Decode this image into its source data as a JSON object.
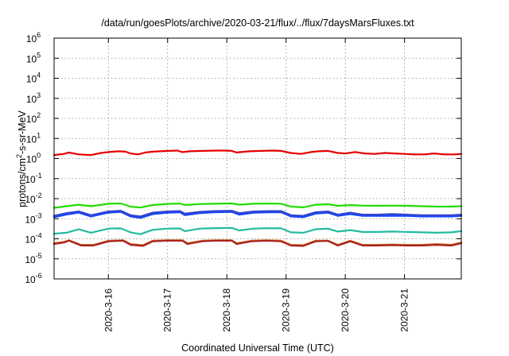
{
  "chart_data": {
    "type": "line",
    "title": "/data/run/goesPlots/archive/2020-03-21/flux/../flux/7daysMarsFluxes.txt",
    "xlabel": "Coordinated Universal Time (UTC)",
    "ylabel": "protons/cm2-s-sr-MeV",
    "ylabel_parts": {
      "pre": "protons/cm",
      "sup": "2",
      "post": "-s-sr-MeV"
    },
    "yscale": "log",
    "ylim": [
      1e-06,
      1000000.0
    ],
    "y_ticks": [
      {
        "value": 1e-06,
        "base": "10",
        "exp": "-6"
      },
      {
        "value": 1e-05,
        "base": "10",
        "exp": "-5"
      },
      {
        "value": 0.0001,
        "base": "10",
        "exp": "-4"
      },
      {
        "value": 0.001,
        "base": "10",
        "exp": "-3"
      },
      {
        "value": 0.01,
        "base": "10",
        "exp": "-2"
      },
      {
        "value": 0.1,
        "base": "10",
        "exp": "-1"
      },
      {
        "value": 1,
        "base": "10",
        "exp": "0"
      },
      {
        "value": 10.0,
        "base": "10",
        "exp": "1"
      },
      {
        "value": 100.0,
        "base": "10",
        "exp": "2"
      },
      {
        "value": 1000.0,
        "base": "10",
        "exp": "3"
      },
      {
        "value": 10000.0,
        "base": "10",
        "exp": "4"
      },
      {
        "value": 100000.0,
        "base": "10",
        "exp": "5"
      },
      {
        "value": 1000000.0,
        "base": "10",
        "exp": "6"
      }
    ],
    "xlim": [
      "2020-03-15 02:00",
      "2020-03-21 23:00"
    ],
    "x_ticks": [
      "2020-3-16",
      "2020-3-17",
      "2020-3-18",
      "2020-3-19",
      "2020-3-20",
      "2020-3-21"
    ],
    "grid": true,
    "series": [
      {
        "color": "#e60000",
        "x": [
          "2020-03-15 02:00",
          "2020-03-15 06:00",
          "2020-03-15 08:00",
          "2020-03-15 12:00",
          "2020-03-15 17:00",
          "2020-03-15 21:00",
          "2020-03-16 00:00",
          "2020-03-16 04:00",
          "2020-03-16 07:00",
          "2020-03-16 09:00",
          "2020-03-16 12:00",
          "2020-03-16 15:00",
          "2020-03-16 18:00",
          "2020-03-17 00:00",
          "2020-03-17 04:00",
          "2020-03-17 06:00",
          "2020-03-17 09:00",
          "2020-03-17 14:00",
          "2020-03-17 19:00",
          "2020-03-17 23:00",
          "2020-03-18 02:00",
          "2020-03-18 04:00",
          "2020-03-18 09:00",
          "2020-03-18 14:00",
          "2020-03-18 18:00",
          "2020-03-18 22:00",
          "2020-03-19 02:00",
          "2020-03-19 06:00",
          "2020-03-19 10:00",
          "2020-03-19 13:00",
          "2020-03-19 17:00",
          "2020-03-19 21:00",
          "2020-03-20 00:00",
          "2020-03-20 04:00",
          "2020-03-20 08:00",
          "2020-03-20 12:00",
          "2020-03-20 16:00",
          "2020-03-20 20:00",
          "2020-03-21 00:00",
          "2020-03-21 04:00",
          "2020-03-21 08:00",
          "2020-03-21 12:00",
          "2020-03-21 16:00",
          "2020-03-21 20:00",
          "2020-03-21 23:00"
        ],
        "values": [
          1.5,
          1.7,
          2.0,
          1.6,
          1.5,
          1.9,
          2.1,
          2.3,
          2.2,
          1.8,
          1.6,
          2.0,
          2.2,
          2.4,
          2.5,
          2.1,
          2.3,
          2.4,
          2.5,
          2.5,
          2.4,
          2.0,
          2.3,
          2.4,
          2.5,
          2.4,
          1.9,
          1.7,
          2.1,
          2.3,
          2.4,
          1.9,
          1.8,
          2.1,
          1.8,
          1.7,
          1.9,
          1.8,
          1.7,
          1.6,
          1.6,
          1.8,
          1.6,
          1.6,
          1.7
        ]
      },
      {
        "color": "#22dd00",
        "x": [
          "2020-03-15 02:00",
          "2020-03-15 07:00",
          "2020-03-15 12:00",
          "2020-03-15 17:00",
          "2020-03-16 00:00",
          "2020-03-16 05:00",
          "2020-03-16 09:00",
          "2020-03-16 13:00",
          "2020-03-16 18:00",
          "2020-03-17 00:00",
          "2020-03-17 05:00",
          "2020-03-17 07:00",
          "2020-03-17 13:00",
          "2020-03-17 19:00",
          "2020-03-18 02:00",
          "2020-03-18 05:00",
          "2020-03-18 11:00",
          "2020-03-18 17:00",
          "2020-03-18 22:00",
          "2020-03-19 02:00",
          "2020-03-19 07:00",
          "2020-03-19 12:00",
          "2020-03-19 17:00",
          "2020-03-19 21:00",
          "2020-03-20 02:00",
          "2020-03-20 07:00",
          "2020-03-20 13:00",
          "2020-03-20 19:00",
          "2020-03-21 01:00",
          "2020-03-21 07:00",
          "2020-03-21 13:00",
          "2020-03-21 19:00",
          "2020-03-21 23:00"
        ],
        "values": [
          0.0035,
          0.0042,
          0.005,
          0.0042,
          0.0056,
          0.0058,
          0.004,
          0.0036,
          0.0048,
          0.0055,
          0.0057,
          0.0048,
          0.0054,
          0.0056,
          0.0058,
          0.005,
          0.0056,
          0.0057,
          0.0056,
          0.004,
          0.0037,
          0.005,
          0.0053,
          0.0044,
          0.0048,
          0.0045,
          0.0044,
          0.0045,
          0.0044,
          0.0042,
          0.004,
          0.004,
          0.0042
        ]
      },
      {
        "color": "#1144ff",
        "x": [
          "2020-03-15 02:00",
          "2020-03-15 07:00",
          "2020-03-15 12:00",
          "2020-03-15 17:00",
          "2020-03-16 00:00",
          "2020-03-16 05:00",
          "2020-03-16 09:00",
          "2020-03-16 13:00",
          "2020-03-16 18:00",
          "2020-03-17 00:00",
          "2020-03-17 05:00",
          "2020-03-17 07:00",
          "2020-03-17 13:00",
          "2020-03-17 19:00",
          "2020-03-18 02:00",
          "2020-03-18 05:00",
          "2020-03-18 11:00",
          "2020-03-18 17:00",
          "2020-03-18 22:00",
          "2020-03-19 02:00",
          "2020-03-19 07:00",
          "2020-03-19 12:00",
          "2020-03-19 17:00",
          "2020-03-19 21:00",
          "2020-03-20 02:00",
          "2020-03-20 07:00",
          "2020-03-20 13:00",
          "2020-03-20 19:00",
          "2020-03-21 01:00",
          "2020-03-21 07:00",
          "2020-03-21 13:00",
          "2020-03-21 19:00",
          "2020-03-21 23:00"
        ],
        "values": [
          0.0012,
          0.0016,
          0.002,
          0.0013,
          0.002,
          0.0022,
          0.0013,
          0.0011,
          0.0017,
          0.002,
          0.0021,
          0.0015,
          0.0019,
          0.0021,
          0.0022,
          0.0016,
          0.002,
          0.0021,
          0.0021,
          0.0013,
          0.0012,
          0.0018,
          0.002,
          0.0014,
          0.0017,
          0.0014,
          0.0014,
          0.0014,
          0.0014,
          0.0013,
          0.0013,
          0.0013,
          0.0014
        ]
      },
      {
        "color": "#3344cc",
        "x": [
          "2020-03-15 02:00",
          "2020-03-15 07:00",
          "2020-03-15 12:00",
          "2020-03-15 17:00",
          "2020-03-16 00:00",
          "2020-03-16 05:00",
          "2020-03-16 09:00",
          "2020-03-16 13:00",
          "2020-03-16 18:00",
          "2020-03-17 00:00",
          "2020-03-17 05:00",
          "2020-03-17 07:00",
          "2020-03-17 13:00",
          "2020-03-17 19:00",
          "2020-03-18 02:00",
          "2020-03-18 05:00",
          "2020-03-18 11:00",
          "2020-03-18 17:00",
          "2020-03-18 22:00",
          "2020-03-19 02:00",
          "2020-03-19 07:00",
          "2020-03-19 12:00",
          "2020-03-19 17:00",
          "2020-03-19 21:00",
          "2020-03-20 02:00",
          "2020-03-20 07:00",
          "2020-03-20 13:00",
          "2020-03-20 19:00",
          "2020-03-21 01:00",
          "2020-03-21 07:00",
          "2020-03-21 13:00",
          "2020-03-21 19:00",
          "2020-03-21 23:00"
        ],
        "values": [
          0.0014,
          0.0019,
          0.0023,
          0.0015,
          0.0023,
          0.0025,
          0.0015,
          0.0013,
          0.002,
          0.0023,
          0.0024,
          0.0018,
          0.0022,
          0.0024,
          0.0025,
          0.0019,
          0.0023,
          0.0024,
          0.0024,
          0.0015,
          0.0014,
          0.0021,
          0.0023,
          0.0016,
          0.002,
          0.0016,
          0.0016,
          0.0017,
          0.0016,
          0.0015,
          0.0015,
          0.0015,
          0.0016
        ]
      },
      {
        "color": "#22bba0",
        "x": [
          "2020-03-15 02:00",
          "2020-03-15 07:00",
          "2020-03-15 12:00",
          "2020-03-15 17:00",
          "2020-03-16 00:00",
          "2020-03-16 05:00",
          "2020-03-16 09:00",
          "2020-03-16 13:00",
          "2020-03-16 18:00",
          "2020-03-17 00:00",
          "2020-03-17 05:00",
          "2020-03-17 07:00",
          "2020-03-17 13:00",
          "2020-03-17 19:00",
          "2020-03-18 02:00",
          "2020-03-18 05:00",
          "2020-03-18 11:00",
          "2020-03-18 17:00",
          "2020-03-18 22:00",
          "2020-03-19 02:00",
          "2020-03-19 07:00",
          "2020-03-19 12:00",
          "2020-03-19 17:00",
          "2020-03-19 21:00",
          "2020-03-20 02:00",
          "2020-03-20 07:00",
          "2020-03-20 13:00",
          "2020-03-20 19:00",
          "2020-03-21 01:00",
          "2020-03-21 07:00",
          "2020-03-21 13:00",
          "2020-03-21 19:00",
          "2020-03-21 23:00"
        ],
        "values": [
          0.00018,
          0.0002,
          0.0003,
          0.0002,
          0.00032,
          0.00033,
          0.00021,
          0.00017,
          0.00028,
          0.00032,
          0.00033,
          0.00024,
          0.00032,
          0.00034,
          0.00035,
          0.00026,
          0.00032,
          0.00034,
          0.00033,
          0.00021,
          0.0002,
          0.0003,
          0.00032,
          0.00023,
          0.00027,
          0.00022,
          0.00022,
          0.00023,
          0.00022,
          0.00021,
          0.0002,
          0.00021,
          0.00024
        ]
      },
      {
        "color": "#cc7722",
        "x": [
          "2020-03-15 02:00",
          "2020-03-15 06:00",
          "2020-03-15 08:00",
          "2020-03-15 13:00",
          "2020-03-15 18:00",
          "2020-03-16 00:00",
          "2020-03-16 06:00",
          "2020-03-16 09:00",
          "2020-03-16 14:00",
          "2020-03-16 18:00",
          "2020-03-17 00:00",
          "2020-03-17 06:00",
          "2020-03-17 08:00",
          "2020-03-17 14:00",
          "2020-03-17 19:00",
          "2020-03-18 02:00",
          "2020-03-18 04:00",
          "2020-03-18 10:00",
          "2020-03-18 16:00",
          "2020-03-18 22:00",
          "2020-03-19 02:00",
          "2020-03-19 07:00",
          "2020-03-19 12:00",
          "2020-03-19 17:00",
          "2020-03-19 21:00",
          "2020-03-20 02:00",
          "2020-03-20 07:00",
          "2020-03-20 13:00",
          "2020-03-20 19:00",
          "2020-03-21 01:00",
          "2020-03-21 07:00",
          "2020-03-21 13:00",
          "2020-03-21 19:00",
          "2020-03-21 23:00"
        ],
        "values": [
          6e-05,
          7e-05,
          8.5e-05,
          5e-05,
          5e-05,
          8e-05,
          8.5e-05,
          5.5e-05,
          4.8e-05,
          8e-05,
          8.5e-05,
          8.5e-05,
          6e-05,
          8e-05,
          8.5e-05,
          8.5e-05,
          6e-05,
          8e-05,
          8.5e-05,
          8e-05,
          5e-05,
          4.8e-05,
          8e-05,
          8.2e-05,
          5e-05,
          8e-05,
          5e-05,
          5e-05,
          5.2e-05,
          5e-05,
          5e-05,
          5.5e-05,
          5e-05,
          6.5e-05
        ]
      },
      {
        "color": "#aa2222",
        "x": [
          "2020-03-15 02:00",
          "2020-03-15 06:00",
          "2020-03-15 08:00",
          "2020-03-15 13:00",
          "2020-03-15 18:00",
          "2020-03-16 00:00",
          "2020-03-16 06:00",
          "2020-03-16 09:00",
          "2020-03-16 14:00",
          "2020-03-16 18:00",
          "2020-03-17 00:00",
          "2020-03-17 06:00",
          "2020-03-17 08:00",
          "2020-03-17 14:00",
          "2020-03-17 19:00",
          "2020-03-18 02:00",
          "2020-03-18 04:00",
          "2020-03-18 10:00",
          "2020-03-18 16:00",
          "2020-03-18 22:00",
          "2020-03-19 02:00",
          "2020-03-19 07:00",
          "2020-03-19 12:00",
          "2020-03-19 17:00",
          "2020-03-19 21:00",
          "2020-03-20 02:00",
          "2020-03-20 07:00",
          "2020-03-20 13:00",
          "2020-03-20 19:00",
          "2020-03-21 01:00",
          "2020-03-21 07:00",
          "2020-03-21 13:00",
          "2020-03-21 19:00",
          "2020-03-21 23:00"
        ],
        "values": [
          5.5e-05,
          6.5e-05,
          8e-05,
          4.6e-05,
          4.6e-05,
          7.5e-05,
          8e-05,
          5e-05,
          4.4e-05,
          7.5e-05,
          8e-05,
          8e-05,
          5.5e-05,
          7.5e-05,
          8e-05,
          8e-05,
          5.5e-05,
          7.5e-05,
          8e-05,
          7.5e-05,
          4.6e-05,
          4.4e-05,
          7.5e-05,
          7.8e-05,
          4.6e-05,
          7.5e-05,
          4.6e-05,
          4.6e-05,
          4.8e-05,
          4.6e-05,
          4.6e-05,
          5e-05,
          4.6e-05,
          6e-05
        ]
      }
    ]
  }
}
